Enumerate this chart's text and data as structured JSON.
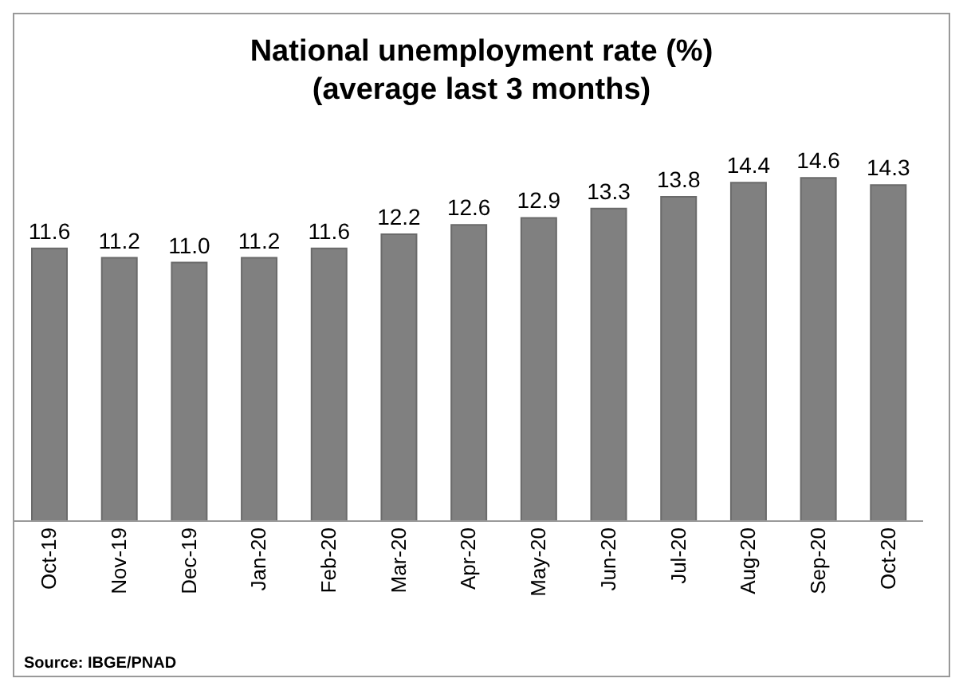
{
  "chart_data": {
    "type": "bar",
    "title": "National unemployment rate (%)",
    "subtitle": "(average last 3 months)",
    "categories": [
      "Oct-19",
      "Nov-19",
      "Dec-19",
      "Jan-20",
      "Feb-20",
      "Mar-20",
      "Apr-20",
      "May-20",
      "Jun-20",
      "Jul-20",
      "Aug-20",
      "Sep-20",
      "Oct-20"
    ],
    "values": [
      11.6,
      11.2,
      11.0,
      11.2,
      11.6,
      12.2,
      12.6,
      12.9,
      13.3,
      13.8,
      14.4,
      14.6,
      14.3
    ],
    "value_labels": [
      "11.6",
      "11.2",
      "11.0",
      "11.2",
      "11.6",
      "12.2",
      "12.6",
      "12.9",
      "13.3",
      "13.8",
      "14.4",
      "14.6",
      "14.3"
    ],
    "color": "#808080",
    "tick_labels": "x",
    "grid": false,
    "annotations": [
      "Source: IBGE/PNAD"
    ]
  }
}
